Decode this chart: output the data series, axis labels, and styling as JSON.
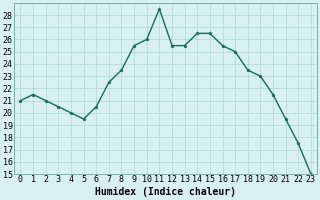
{
  "x": [
    0,
    1,
    2,
    3,
    4,
    5,
    6,
    7,
    8,
    9,
    10,
    11,
    12,
    13,
    14,
    15,
    16,
    17,
    18,
    19,
    20,
    21,
    22,
    23
  ],
  "y": [
    21,
    21.5,
    21,
    20.5,
    20,
    19.5,
    20.5,
    22.5,
    23.5,
    25.5,
    26,
    28.5,
    25.5,
    25.5,
    26.5,
    26.5,
    25.5,
    25,
    23.5,
    23,
    21.5,
    19.5,
    17.5,
    15
  ],
  "line_color": "#1a6b5a",
  "marker_color": "#1a6b5a",
  "bg_color": "#d8f0ee",
  "grid_color": "#aad8d4",
  "xlabel": "Humidex (Indice chaleur)",
  "ylim": [
    15,
    29
  ],
  "xlim": [
    -0.5,
    23.5
  ],
  "yticks": [
    15,
    16,
    17,
    18,
    19,
    20,
    21,
    22,
    23,
    24,
    25,
    26,
    27,
    28
  ],
  "xticks": [
    0,
    1,
    2,
    3,
    4,
    5,
    6,
    7,
    8,
    9,
    10,
    11,
    12,
    13,
    14,
    15,
    16,
    17,
    18,
    19,
    20,
    21,
    22,
    23
  ],
  "label_fontsize": 7,
  "tick_fontsize": 6,
  "linewidth": 1.0,
  "markersize": 2.5
}
